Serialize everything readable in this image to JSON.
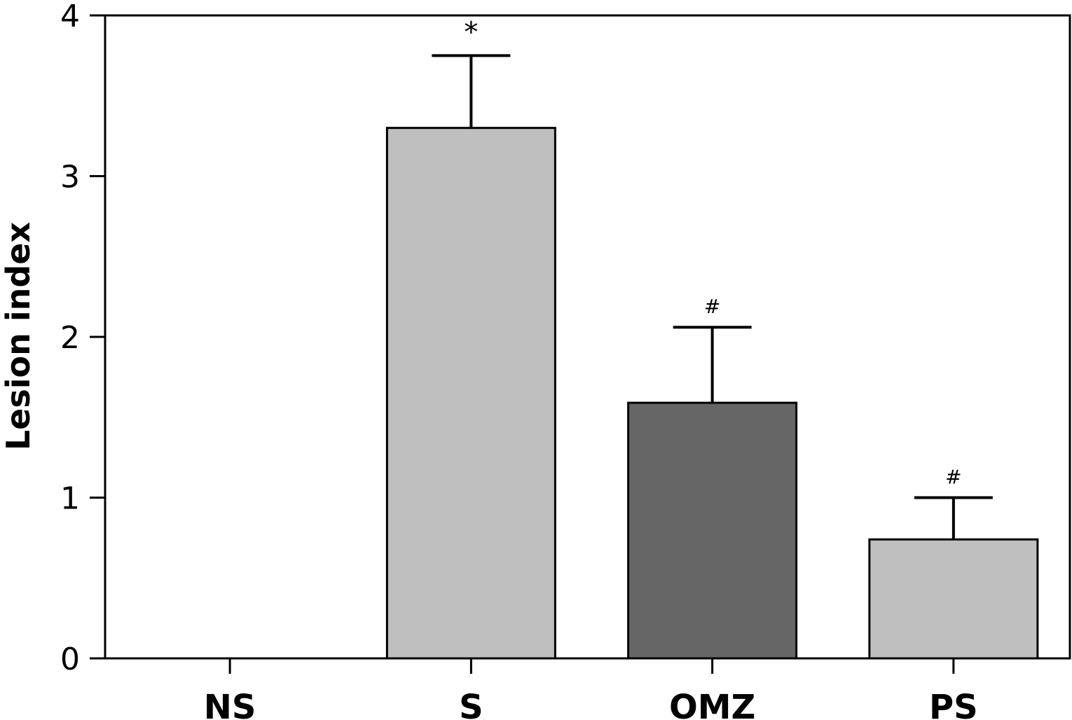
{
  "chart_data": {
    "type": "bar",
    "ylabel": "Lesion index",
    "ylim": [
      0,
      4
    ],
    "yticks": [
      0,
      1,
      2,
      3,
      4
    ],
    "categories": [
      "NS",
      "S",
      "OMZ",
      "PS"
    ],
    "values": [
      0,
      3.3,
      1.59,
      0.74
    ],
    "error_upper": [
      0,
      0.45,
      0.47,
      0.26
    ],
    "annotations": [
      "",
      "*",
      "#",
      "#"
    ],
    "bar_colors": [
      "#ffffff",
      "#bfbfbf",
      "#666666",
      "#bfbfbf"
    ],
    "grid": false
  }
}
